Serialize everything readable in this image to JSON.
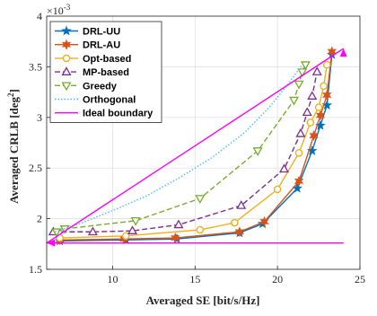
{
  "chart_data": {
    "type": "line",
    "title": "",
    "xlabel": "Averaged SE [bit/s/Hz]",
    "ylabel": "Averaged CRLB [deg",
    "ylabel_sup": "2",
    "ylabel_end": "]",
    "y_exponent_base": "×10",
    "y_exponent_power": "-3",
    "xlim": [
      6,
      25
    ],
    "ylim": [
      1.5,
      4.0
    ],
    "xticks": [
      10,
      15,
      20,
      25
    ],
    "yticks": [
      1.5,
      2,
      2.5,
      3,
      3.5,
      4
    ],
    "xtick_labels": [
      "10",
      "15",
      "20",
      "25"
    ],
    "ytick_labels": [
      "1.5",
      "2",
      "2.5",
      "3",
      "3.5",
      "4"
    ],
    "grid": true,
    "legend_position": "top-left",
    "series": [
      {
        "name": "DRL-UU",
        "color": "#0072BD",
        "marker": "star",
        "dash": "solid",
        "x": [
          6.8,
          10.8,
          13.9,
          17.7,
          19.1,
          21.2,
          22.1,
          22.6,
          23.0,
          23.3
        ],
        "y": [
          1.78,
          1.79,
          1.8,
          1.86,
          1.95,
          2.3,
          2.67,
          2.92,
          3.12,
          3.62
        ]
      },
      {
        "name": "DRL-AU",
        "color": "#D95319",
        "marker": "hexagram",
        "dash": "solid",
        "x": [
          6.8,
          10.7,
          13.8,
          17.7,
          19.2,
          21.3,
          22.2,
          22.6,
          23.0,
          23.3
        ],
        "y": [
          1.79,
          1.8,
          1.81,
          1.87,
          1.97,
          2.37,
          2.82,
          3.02,
          3.22,
          3.65
        ]
      },
      {
        "name": "Opt-based",
        "color": "#EDB120",
        "marker": "circle",
        "dash": "solid",
        "x": [
          6.8,
          10.8,
          15.3,
          17.4,
          20.0,
          21.3,
          22.0,
          22.5,
          22.8,
          23.0
        ],
        "y": [
          1.81,
          1.83,
          1.89,
          1.96,
          2.29,
          2.65,
          2.95,
          3.1,
          3.31,
          3.52
        ]
      },
      {
        "name": "MP-based",
        "color": "#7E2F8E",
        "marker": "triangle-up",
        "dash": "dash",
        "x": [
          6.4,
          8.8,
          11.2,
          14.0,
          17.8,
          20.4,
          21.4,
          21.8,
          22.1,
          22.4
        ],
        "y": [
          1.87,
          1.87,
          1.88,
          1.94,
          2.13,
          2.49,
          2.84,
          3.05,
          3.21,
          3.45
        ]
      },
      {
        "name": "Greedy",
        "color": "#77AC30",
        "marker": "triangle-down",
        "dash": "dash",
        "x": [
          6.6,
          7.1,
          11.4,
          15.3,
          18.8,
          21.0,
          21.3,
          21.5,
          21.7
        ],
        "y": [
          1.87,
          1.9,
          1.98,
          2.2,
          2.67,
          3.17,
          3.33,
          3.45,
          3.52
        ]
      },
      {
        "name": "Orthogonal",
        "color": "#4DBEEE",
        "marker": "none",
        "dash": "dot",
        "x": [
          6.5,
          8.0,
          10.0,
          12.0,
          14.0,
          16.0,
          18.0,
          19.5,
          20.5,
          21.5
        ],
        "y": [
          1.87,
          1.95,
          2.08,
          2.22,
          2.4,
          2.6,
          2.85,
          3.1,
          3.3,
          3.52
        ]
      },
      {
        "name": "Ideal boundary",
        "color": "#FF00FF",
        "marker": "none",
        "dash": "solid",
        "x": [
          24.0,
          6.0,
          24.0
        ],
        "y": [
          1.76,
          1.76,
          3.68
        ]
      }
    ]
  }
}
